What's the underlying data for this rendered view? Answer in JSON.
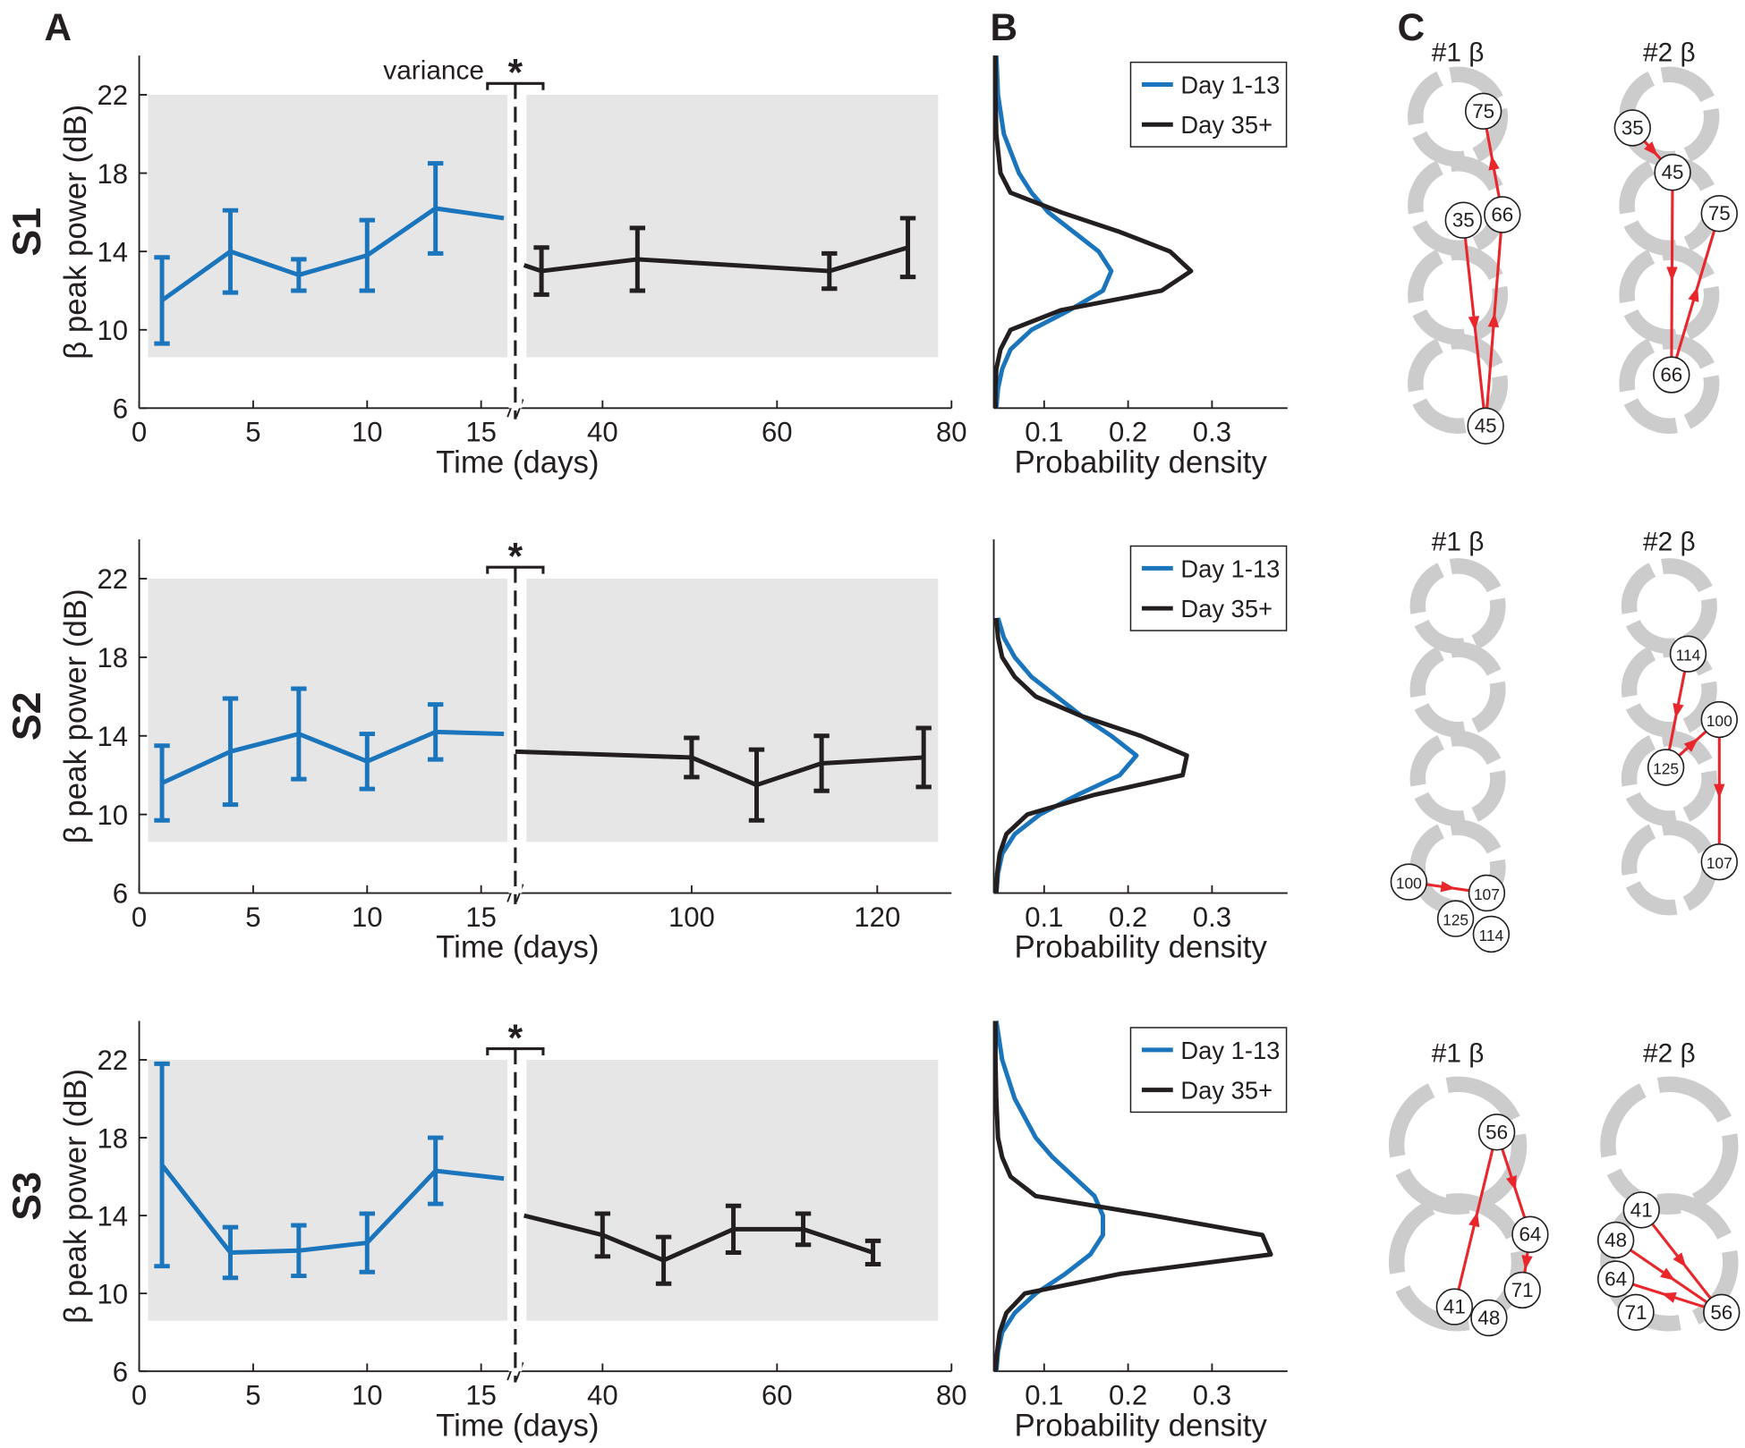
{
  "panel_labels": [
    "A",
    "B",
    "C"
  ],
  "row_labels": [
    "S1",
    "S2",
    "S3"
  ],
  "chart_data": [
    {
      "type": "line",
      "ylabel": "β peak power (dB)",
      "xlabel": "Time (days)",
      "annotation": "variance",
      "significance": "*",
      "xlim": [
        0,
        80
      ],
      "xbreak": [
        16.5,
        30
      ],
      "xticks": [
        0,
        5,
        10,
        15,
        40,
        60,
        80
      ],
      "ylim": [
        6,
        24
      ],
      "yticks": [
        6,
        10,
        14,
        18,
        22
      ],
      "shade": [
        8.6,
        22
      ],
      "series": [
        {
          "color": "#1a75bc",
          "x": [
            1,
            4,
            7,
            10,
            13,
            16
          ],
          "values": [
            11.5,
            14.0,
            12.8,
            13.8,
            16.2,
            15.7
          ],
          "errors": [
            2.2,
            2.1,
            0.8,
            1.8,
            2.3,
            null
          ]
        },
        {
          "color": "#231f20",
          "x": [
            31,
            33,
            44,
            66,
            75
          ],
          "values": [
            13.3,
            13.0,
            13.6,
            13.0,
            14.2
          ],
          "errors": [
            null,
            1.2,
            1.6,
            0.9,
            1.5
          ]
        }
      ]
    },
    {
      "type": "density",
      "xlabel": "Probability density",
      "xlim": [
        0.04,
        0.39
      ],
      "xticks": [
        0.1,
        0.2,
        0.3
      ],
      "ylim": [
        6,
        24
      ],
      "y": [
        24,
        22,
        20,
        18,
        17,
        16,
        15,
        14,
        13,
        12,
        11,
        10,
        9,
        8,
        7,
        6
      ],
      "series": [
        {
          "name": "Day 1-13",
          "color": "#1a75bc",
          "values": [
            0.043,
            0.045,
            0.052,
            0.07,
            0.085,
            0.105,
            0.135,
            0.165,
            0.18,
            0.17,
            0.13,
            0.085,
            0.06,
            0.05,
            0.045,
            0.043
          ]
        },
        {
          "name": "Day 35+",
          "color": "#231f20",
          "values": [
            0.042,
            0.042,
            0.043,
            0.048,
            0.06,
            0.12,
            0.19,
            0.25,
            0.275,
            0.24,
            0.12,
            0.06,
            0.048,
            0.043,
            0.042,
            0.042
          ]
        }
      ]
    },
    {
      "type": "line",
      "ylabel": "β peak power (dB)",
      "xlabel": "Time (days)",
      "significance": "*",
      "xlim": [
        0,
        128
      ],
      "xbreak": [
        16.5,
        81
      ],
      "xticks": [
        0,
        5,
        10,
        15,
        100,
        120
      ],
      "ylim": [
        6,
        24
      ],
      "yticks": [
        6,
        10,
        14,
        18,
        22
      ],
      "shade": [
        8.6,
        22
      ],
      "series": [
        {
          "color": "#1a75bc",
          "x": [
            1,
            4,
            7,
            10,
            13,
            16
          ],
          "values": [
            11.6,
            13.2,
            14.1,
            12.7,
            14.2,
            14.1
          ],
          "errors": [
            1.9,
            2.7,
            2.3,
            1.4,
            1.4,
            null
          ]
        },
        {
          "color": "#231f20",
          "x": [
            81,
            100,
            107,
            114,
            125
          ],
          "values": [
            13.2,
            12.9,
            11.5,
            12.6,
            12.9
          ],
          "errors": [
            null,
            1.0,
            1.8,
            1.4,
            1.5
          ]
        }
      ]
    },
    {
      "type": "density",
      "xlabel": "Probability density",
      "xlim": [
        0.04,
        0.39
      ],
      "xticks": [
        0.1,
        0.2,
        0.3
      ],
      "ylim": [
        6,
        24
      ],
      "y": [
        20,
        19,
        18,
        17,
        16,
        15,
        14,
        13,
        12,
        11,
        10,
        9,
        8,
        7,
        6
      ],
      "series": [
        {
          "name": "Day 1-13",
          "color": "#1a75bc",
          "values": [
            0.045,
            0.052,
            0.065,
            0.085,
            0.115,
            0.145,
            0.18,
            0.21,
            0.19,
            0.14,
            0.095,
            0.065,
            0.05,
            0.045,
            0.043
          ]
        },
        {
          "name": "Day 35+",
          "color": "#231f20",
          "values": [
            0.043,
            0.045,
            0.05,
            0.065,
            0.09,
            0.145,
            0.215,
            0.27,
            0.265,
            0.16,
            0.08,
            0.055,
            0.047,
            0.044,
            0.043
          ]
        }
      ]
    },
    {
      "type": "line",
      "ylabel": "β peak power (dB)",
      "xlabel": "Time (days)",
      "significance": "*",
      "xlim": [
        0,
        80
      ],
      "xbreak": [
        16.5,
        30
      ],
      "xticks": [
        0,
        5,
        10,
        15,
        40,
        60,
        80
      ],
      "ylim": [
        6,
        24
      ],
      "yticks": [
        6,
        10,
        14,
        18,
        22
      ],
      "shade": [
        8.6,
        22
      ],
      "series": [
        {
          "color": "#1a75bc",
          "x": [
            1,
            4,
            7,
            10,
            13,
            16
          ],
          "values": [
            16.6,
            12.1,
            12.2,
            12.6,
            16.3,
            15.9
          ],
          "errors": [
            5.2,
            1.3,
            1.3,
            1.5,
            1.7,
            null
          ]
        },
        {
          "color": "#231f20",
          "x": [
            31,
            40,
            47,
            55,
            63,
            71
          ],
          "values": [
            14.0,
            13.0,
            11.7,
            13.3,
            13.3,
            12.1
          ],
          "errors": [
            null,
            1.1,
            1.2,
            1.2,
            0.8,
            0.6
          ]
        }
      ]
    },
    {
      "type": "density",
      "xlabel": "Probability density",
      "xlim": [
        0.04,
        0.39
      ],
      "xticks": [
        0.1,
        0.2,
        0.3
      ],
      "ylim": [
        6,
        24
      ],
      "y": [
        24,
        22,
        20,
        18,
        17,
        16,
        15,
        14,
        13,
        12,
        11,
        10,
        9,
        8,
        7,
        6
      ],
      "series": [
        {
          "name": "Day 1-13",
          "color": "#1a75bc",
          "values": [
            0.043,
            0.05,
            0.065,
            0.09,
            0.11,
            0.135,
            0.16,
            0.17,
            0.17,
            0.155,
            0.125,
            0.09,
            0.065,
            0.05,
            0.045,
            0.043
          ]
        },
        {
          "name": "Day 35+",
          "color": "#231f20",
          "values": [
            0.042,
            0.042,
            0.043,
            0.045,
            0.05,
            0.06,
            0.09,
            0.23,
            0.36,
            0.37,
            0.19,
            0.077,
            0.055,
            0.047,
            0.044,
            0.042
          ]
        }
      ]
    }
  ],
  "diagrams": [
    {
      "title": "#1 β",
      "nodes": [
        "75",
        "35",
        "66",
        "45"
      ]
    },
    {
      "title": "#2 β",
      "nodes": [
        "35",
        "45",
        "75",
        "66"
      ]
    },
    {
      "title": "#1 β",
      "nodes": [
        "100",
        "107",
        "125",
        "114"
      ]
    },
    {
      "title": "#2 β",
      "nodes": [
        "114",
        "100",
        "125",
        "107"
      ]
    },
    {
      "title": "#1 β",
      "nodes": [
        "56",
        "64",
        "71",
        "41",
        "48"
      ]
    },
    {
      "title": "#2 β",
      "nodes": [
        "41",
        "48",
        "64",
        "71",
        "56"
      ]
    }
  ]
}
